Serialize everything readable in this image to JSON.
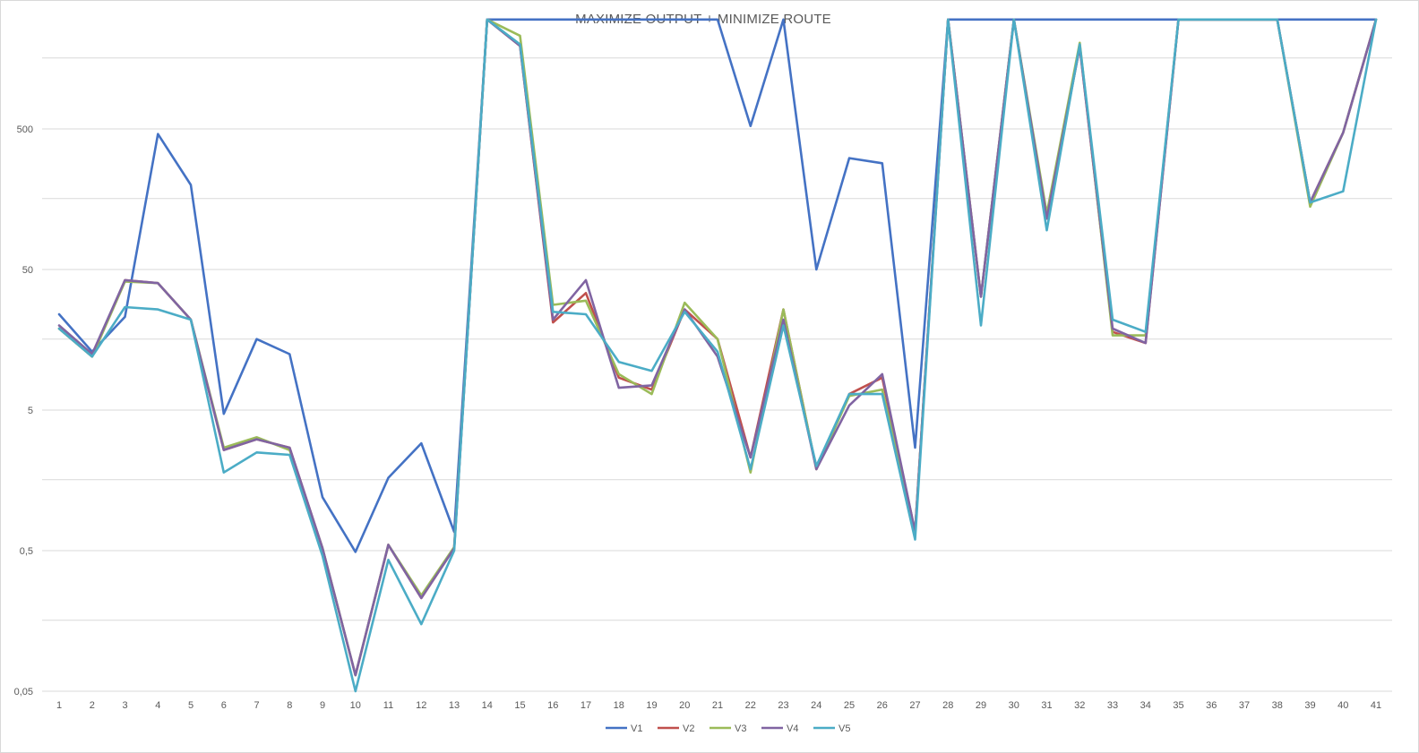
{
  "chart_data": {
    "type": "line",
    "title": "MAXIMIZE OUTPUT + MINIMIZE ROUTE",
    "xlabel": "",
    "ylabel": "",
    "y_scale": "log",
    "ylim": [
      0.05,
      3000
    ],
    "y_ticks": [
      0.05,
      0.5,
      5,
      50,
      500
    ],
    "y_tick_labels": [
      "0,05",
      "0,5",
      "5",
      "50",
      "500"
    ],
    "grid": true,
    "legend_position": "bottom",
    "x": [
      1,
      2,
      3,
      4,
      5,
      6,
      7,
      8,
      9,
      10,
      11,
      12,
      13,
      14,
      15,
      16,
      17,
      18,
      19,
      20,
      21,
      22,
      23,
      24,
      25,
      26,
      27,
      28,
      29,
      30,
      31,
      32,
      33,
      34,
      35,
      36,
      37,
      38,
      39,
      40,
      41
    ],
    "series": [
      {
        "name": "V1",
        "color": "#4472c4",
        "values": [
          24,
          13,
          23,
          460,
          200,
          4.7,
          16,
          12.5,
          1.2,
          0.49,
          1.65,
          2.9,
          0.68,
          3000,
          3000,
          3000,
          3000,
          3000,
          3000,
          3000,
          3000,
          525,
          3000,
          50,
          310,
          285,
          2.7,
          3000,
          3000,
          3000,
          3000,
          3000,
          3000,
          3000,
          3000,
          3000,
          3000,
          3000,
          3000,
          3000,
          3000
        ]
      },
      {
        "name": "V2",
        "color": "#c0504d",
        "values": [
          19,
          12,
          42,
          40,
          22,
          2.6,
          3.1,
          2.7,
          0.52,
          0.065,
          0.55,
          0.23,
          0.52,
          3000,
          1950,
          21,
          34,
          8.5,
          7,
          26,
          16,
          2.3,
          26,
          1.9,
          6.5,
          8.5,
          0.68,
          3000,
          32,
          3000,
          115,
          1920,
          18,
          15,
          3000,
          3000,
          3000,
          3000,
          150,
          470,
          3000
        ]
      },
      {
        "name": "V3",
        "color": "#9bbb59",
        "values": [
          19,
          12,
          41,
          40,
          22,
          2.7,
          3.2,
          2.6,
          0.52,
          0.065,
          0.55,
          0.24,
          0.53,
          3000,
          2300,
          28,
          30,
          9,
          6.5,
          29,
          16,
          1.8,
          26,
          1.9,
          6.3,
          7,
          0.68,
          3000,
          32,
          3000,
          125,
          2050,
          17,
          17,
          3000,
          3000,
          3000,
          3000,
          140,
          470,
          3000
        ]
      },
      {
        "name": "V4",
        "color": "#8064a2",
        "values": [
          20,
          12.5,
          42,
          40,
          22,
          2.6,
          3.1,
          2.7,
          0.52,
          0.065,
          0.55,
          0.23,
          0.52,
          3000,
          1950,
          22,
          42,
          7.2,
          7.5,
          26,
          12,
          2.3,
          22,
          1.9,
          5.4,
          9,
          0.68,
          3000,
          32,
          3000,
          115,
          1920,
          19,
          15,
          3000,
          3000,
          3000,
          3000,
          150,
          470,
          3000
        ]
      },
      {
        "name": "V5",
        "color": "#4bacc6",
        "values": [
          19,
          12,
          27,
          26,
          22,
          1.8,
          2.5,
          2.4,
          0.46,
          0.05,
          0.43,
          0.15,
          0.5,
          3000,
          2000,
          25,
          24,
          11,
          9.5,
          25,
          13,
          1.9,
          20,
          2,
          6.5,
          6.5,
          0.6,
          3000,
          20,
          3000,
          95,
          2000,
          22,
          18,
          3000,
          3000,
          3000,
          3000,
          150,
          180,
          3000
        ]
      }
    ]
  }
}
